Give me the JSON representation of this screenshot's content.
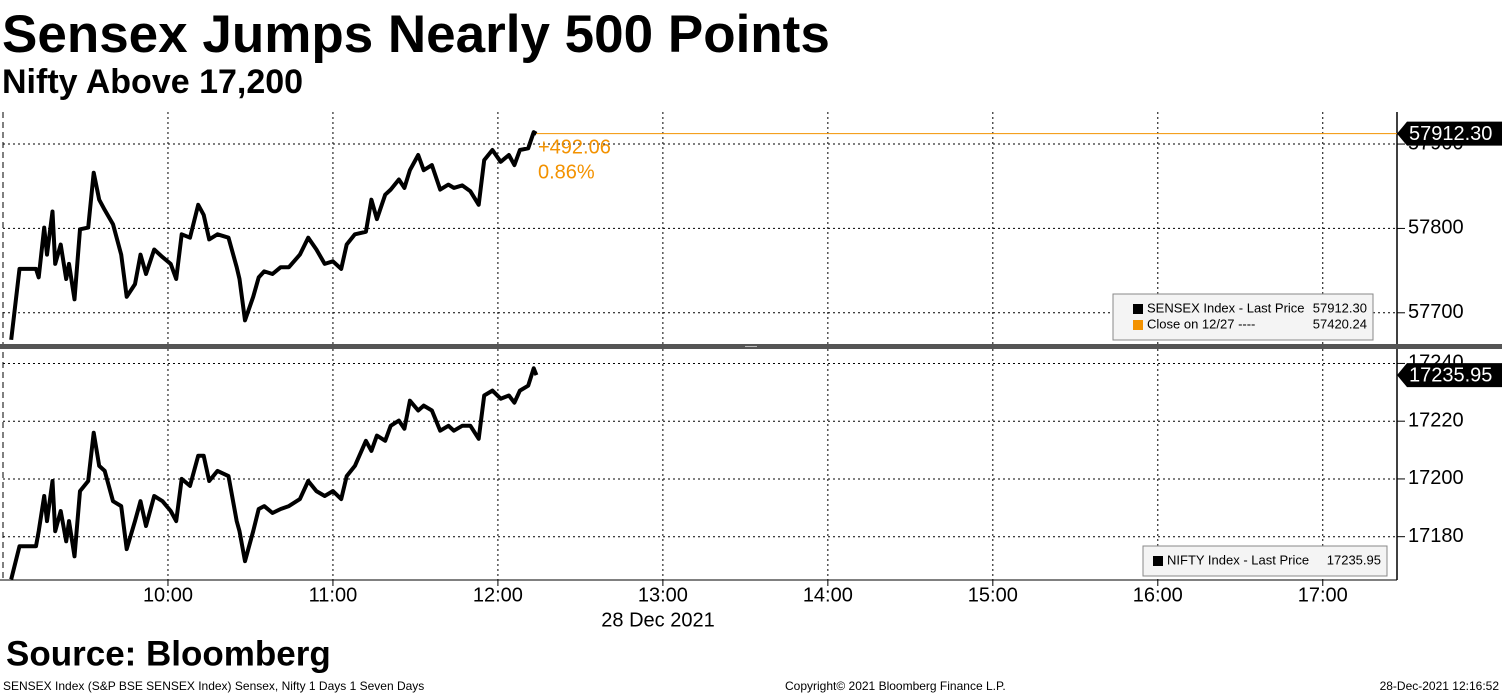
{
  "header": {
    "title": "Sensex Jumps Nearly 500 Points",
    "subtitle": "Nifty Above 17,200"
  },
  "chart_data": [
    {
      "type": "line",
      "x": [
        "09:03",
        "09:06",
        "09:12",
        "09:13",
        "09:15",
        "09:16",
        "09:18",
        "09:19",
        "09:21",
        "09:23",
        "09:24",
        "09:26",
        "09:28",
        "09:31",
        "09:33",
        "09:35",
        "09:37",
        "09:40",
        "09:43",
        "09:45",
        "09:48",
        "09:50",
        "09:52",
        "09:55",
        "09:58",
        "10:01",
        "10:03",
        "10:05",
        "10:08",
        "10:11",
        "10:13",
        "10:15",
        "10:18",
        "10:22",
        "10:25",
        "10:26",
        "10:28",
        "10:31",
        "10:33",
        "10:35",
        "10:38",
        "10:41",
        "10:44",
        "10:48",
        "10:51",
        "10:54",
        "10:57",
        "11:00",
        "11:03",
        "11:05",
        "11:08",
        "11:12",
        "11:14",
        "11:16",
        "11:19",
        "11:21",
        "11:24",
        "11:26",
        "11:28",
        "11:31",
        "11:33",
        "11:36",
        "11:39",
        "11:42",
        "11:44",
        "11:47",
        "11:50",
        "11:53",
        "11:55",
        "11:58",
        "12:01",
        "12:04",
        "12:06",
        "12:08",
        "12:11",
        "12:13",
        "12:14"
      ],
      "series": [
        {
          "name": "SENSEX Index  -  Last Price",
          "color": "#000000",
          "values": [
            57668,
            57752,
            57752,
            57742,
            57801,
            57769,
            57820,
            57758,
            57781,
            57740,
            57758,
            57716,
            57799,
            57801,
            57866,
            57834,
            57822,
            57805,
            57769,
            57719,
            57734,
            57769,
            57746,
            57775,
            57766,
            57758,
            57740,
            57793,
            57789,
            57828,
            57816,
            57787,
            57793,
            57789,
            57754,
            57740,
            57691,
            57719,
            57742,
            57749,
            57746,
            57754,
            57754,
            57769,
            57789,
            57775,
            57758,
            57761,
            57752,
            57781,
            57793,
            57796,
            57834,
            57811,
            57840,
            57846,
            57858,
            57848,
            57869,
            57887,
            57869,
            57875,
            57846,
            57852,
            57848,
            57851,
            57844,
            57828,
            57881,
            57893,
            57879,
            57887,
            57875,
            57893,
            57895,
            57914,
            57912.3
          ]
        }
      ],
      "last_price": {
        "value": 57912.3,
        "label": "57912.30",
        "color": "#f39200"
      },
      "previous_close": {
        "name": "Close on 12/27  ----",
        "value": 57420.24,
        "label": "57420.24",
        "color": "#f39200"
      },
      "annotations": [
        "+492.06",
        "0.86%"
      ],
      "xlim": [
        "09:00",
        "17:27"
      ],
      "ylim": [
        57663,
        57938
      ],
      "yticks": [
        57700,
        57800,
        57900
      ],
      "grid": true
    },
    {
      "type": "line",
      "x": [
        "09:03",
        "09:06",
        "09:12",
        "09:13",
        "09:15",
        "09:16",
        "09:18",
        "09:19",
        "09:21",
        "09:23",
        "09:24",
        "09:26",
        "09:28",
        "09:31",
        "09:33",
        "09:35",
        "09:37",
        "09:40",
        "09:43",
        "09:45",
        "09:48",
        "09:50",
        "09:52",
        "09:55",
        "09:58",
        "10:01",
        "10:03",
        "10:05",
        "10:08",
        "10:11",
        "10:13",
        "10:15",
        "10:18",
        "10:22",
        "10:25",
        "10:26",
        "10:28",
        "10:31",
        "10:33",
        "10:35",
        "10:38",
        "10:41",
        "10:44",
        "10:48",
        "10:51",
        "10:54",
        "10:57",
        "11:00",
        "11:03",
        "11:05",
        "11:08",
        "11:12",
        "11:14",
        "11:16",
        "11:19",
        "11:21",
        "11:24",
        "11:26",
        "11:28",
        "11:31",
        "11:33",
        "11:36",
        "11:39",
        "11:42",
        "11:44",
        "11:47",
        "11:50",
        "11:53",
        "11:55",
        "11:58",
        "12:01",
        "12:04",
        "12:06",
        "12:08",
        "12:11",
        "12:13",
        "12:14"
      ],
      "series": [
        {
          "name": "NIFTY Index  -  Last Price",
          "color": "#000000",
          "values": [
            17165.2,
            17176.7,
            17176.7,
            17181.9,
            17194.1,
            17185.4,
            17199.3,
            17181.9,
            17188.9,
            17178.4,
            17185.4,
            17173.2,
            17195.8,
            17199.3,
            17216,
            17204.5,
            17202.8,
            17192.3,
            17190.6,
            17175.7,
            17185.4,
            17192.3,
            17183.7,
            17194.1,
            17192.3,
            17188.9,
            17185.4,
            17200,
            17197.6,
            17208,
            17208,
            17199.3,
            17202.8,
            17201,
            17185.4,
            17181.9,
            17171.5,
            17181.9,
            17189.6,
            17190.6,
            17188.2,
            17189.6,
            17190.6,
            17193,
            17199.3,
            17195.8,
            17194.1,
            17195.8,
            17193,
            17201,
            17204.5,
            17213.2,
            17209.7,
            17215,
            17213.2,
            17218.4,
            17220.2,
            17217.4,
            17227.1,
            17223.7,
            17225.4,
            17223.7,
            17216.7,
            17218.4,
            17216.7,
            17218.4,
            17218.4,
            17213.9,
            17228.9,
            17230.6,
            17227.8,
            17228.9,
            17226.4,
            17230.6,
            17232.3,
            17238.3,
            17235.95
          ]
        }
      ],
      "last_price": {
        "value": 17235.95,
        "label": "17235.95"
      },
      "xlim": [
        "09:00",
        "17:27"
      ],
      "xticks": [
        "10:00",
        "11:00",
        "12:00",
        "13:00",
        "14:00",
        "15:00",
        "16:00",
        "17:00"
      ],
      "date_label": "28 Dec 2021",
      "ylim": [
        17165,
        17245
      ],
      "yticks": [
        17180,
        17200,
        17220,
        17240
      ],
      "grid": true
    }
  ],
  "footer": {
    "source": "Source: Bloomberg",
    "description": "SENSEX Index (S&P BSE SENSEX Index) Sensex, Nifty 1 Days 1 Seven Days",
    "copyright": "Copyright© 2021 Bloomberg Finance L.P.",
    "timestamp": "28-Dec-2021 12:16:52"
  }
}
